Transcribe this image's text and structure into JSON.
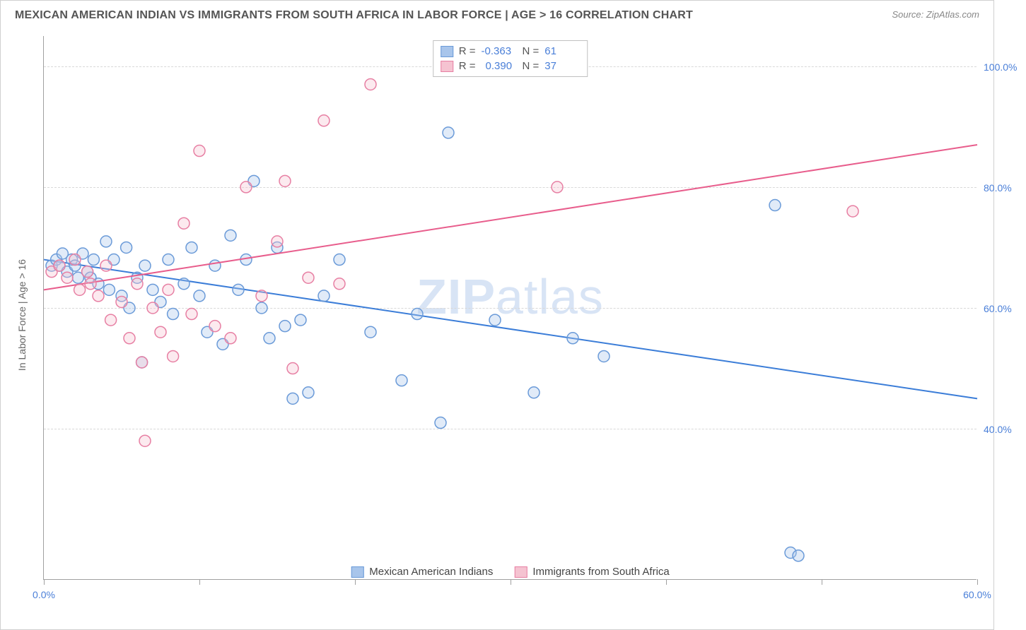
{
  "title": "MEXICAN AMERICAN INDIAN VS IMMIGRANTS FROM SOUTH AFRICA IN LABOR FORCE | AGE > 16 CORRELATION CHART",
  "source": "Source: ZipAtlas.com",
  "y_axis_label": "In Labor Force | Age > 16",
  "watermark_a": "ZIP",
  "watermark_b": "atlas",
  "chart": {
    "type": "scatter",
    "background_color": "#ffffff",
    "grid_color": "#d8d8d8",
    "axis_color": "#a0a0a0",
    "tick_color": "#4a7fd8",
    "xlim": [
      0,
      60
    ],
    "ylim": [
      15,
      105
    ],
    "x_ticks": [
      0,
      10,
      20,
      30,
      40,
      50,
      60
    ],
    "x_tick_labels": {
      "0": "0.0%",
      "60": "60.0%"
    },
    "y_ticks": [
      40,
      60,
      80,
      100
    ],
    "y_tick_labels": {
      "40": "40.0%",
      "60": "60.0%",
      "80": "80.0%",
      "100": "100.0%"
    },
    "marker_radius": 8,
    "marker_fill_opacity": 0.35,
    "marker_stroke_width": 1.5,
    "line_width": 2
  },
  "series": [
    {
      "id": "mexican",
      "label": "Mexican American Indians",
      "color_fill": "#a8c5eb",
      "color_stroke": "#6a9ad8",
      "line_color": "#3b7dd8",
      "R": "-0.363",
      "N": "61",
      "trend": {
        "x1": 0,
        "y1": 68,
        "x2": 60,
        "y2": 45
      },
      "points": [
        [
          0.5,
          67
        ],
        [
          0.8,
          68
        ],
        [
          1,
          67
        ],
        [
          1.2,
          69
        ],
        [
          1.5,
          66
        ],
        [
          1.8,
          68
        ],
        [
          2,
          67
        ],
        [
          2.2,
          65
        ],
        [
          2.5,
          69
        ],
        [
          2.8,
          66
        ],
        [
          3,
          65
        ],
        [
          3.2,
          68
        ],
        [
          3.5,
          64
        ],
        [
          4,
          71
        ],
        [
          4.2,
          63
        ],
        [
          4.5,
          68
        ],
        [
          5,
          62
        ],
        [
          5.3,
          70
        ],
        [
          5.5,
          60
        ],
        [
          6,
          65
        ],
        [
          6.3,
          51
        ],
        [
          6.5,
          67
        ],
        [
          7,
          63
        ],
        [
          7.5,
          61
        ],
        [
          8,
          68
        ],
        [
          8.3,
          59
        ],
        [
          9,
          64
        ],
        [
          9.5,
          70
        ],
        [
          10,
          62
        ],
        [
          10.5,
          56
        ],
        [
          11,
          67
        ],
        [
          11.5,
          54
        ],
        [
          12,
          72
        ],
        [
          12.5,
          63
        ],
        [
          13,
          68
        ],
        [
          13.5,
          81
        ],
        [
          14,
          60
        ],
        [
          14.5,
          55
        ],
        [
          15,
          70
        ],
        [
          15.5,
          57
        ],
        [
          16,
          45
        ],
        [
          16.5,
          58
        ],
        [
          17,
          46
        ],
        [
          18,
          62
        ],
        [
          19,
          68
        ],
        [
          21,
          56
        ],
        [
          23,
          48
        ],
        [
          24,
          59
        ],
        [
          25.5,
          41
        ],
        [
          26,
          89
        ],
        [
          29,
          58
        ],
        [
          31.5,
          46
        ],
        [
          34,
          55
        ],
        [
          36,
          52
        ],
        [
          47,
          77
        ],
        [
          48,
          19.5
        ],
        [
          48.5,
          19
        ]
      ]
    },
    {
      "id": "south_africa",
      "label": "Immigrants from South Africa",
      "color_fill": "#f5c3d1",
      "color_stroke": "#e77fa3",
      "line_color": "#e85d8c",
      "R": "0.390",
      "N": "37",
      "trend": {
        "x1": 0,
        "y1": 63,
        "x2": 60,
        "y2": 87
      },
      "points": [
        [
          0.5,
          66
        ],
        [
          1,
          67
        ],
        [
          1.5,
          65
        ],
        [
          2,
          68
        ],
        [
          2.3,
          63
        ],
        [
          2.8,
          66
        ],
        [
          3,
          64
        ],
        [
          3.5,
          62
        ],
        [
          4,
          67
        ],
        [
          4.3,
          58
        ],
        [
          5,
          61
        ],
        [
          5.5,
          55
        ],
        [
          6,
          64
        ],
        [
          6.3,
          51
        ],
        [
          6.5,
          38
        ],
        [
          7,
          60
        ],
        [
          7.5,
          56
        ],
        [
          8,
          63
        ],
        [
          8.3,
          52
        ],
        [
          9,
          74
        ],
        [
          9.5,
          59
        ],
        [
          10,
          86
        ],
        [
          11,
          57
        ],
        [
          12,
          55
        ],
        [
          13,
          80
        ],
        [
          14,
          62
        ],
        [
          15,
          71
        ],
        [
          15.5,
          81
        ],
        [
          16,
          50
        ],
        [
          17,
          65
        ],
        [
          18,
          91
        ],
        [
          19,
          64
        ],
        [
          21,
          97
        ],
        [
          33,
          80
        ],
        [
          52,
          76
        ]
      ]
    }
  ],
  "legend_stats": {
    "r_label": "R =",
    "n_label": "N ="
  }
}
